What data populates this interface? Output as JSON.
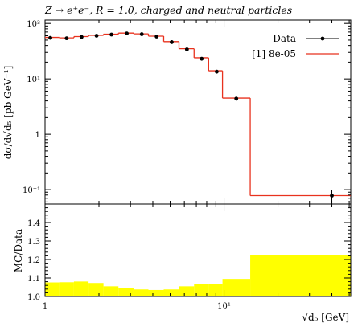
{
  "chart_data": {
    "type": "line",
    "title": "Z → e⁺e⁻, R = 1.0, charged and neutral particles",
    "xlabel": "√d₅ [GeV]",
    "xscale": "log",
    "xlim": [
      1,
      51
    ],
    "main": {
      "ylabel": "dσ/d√d₅ [pb GeV⁻¹]",
      "yscale": "log",
      "ylim": [
        0.055,
        115
      ],
      "yticks": [
        {
          "value": 100,
          "label": "10²"
        },
        {
          "value": 10,
          "label": "10¹"
        },
        {
          "value": 1,
          "label": "1"
        },
        {
          "value": 0.1,
          "label": "10⁻¹"
        }
      ],
      "legend_position": "top-right",
      "series": [
        {
          "name": "Data",
          "style": "points",
          "color": "#000000",
          "x": [
            1.07,
            1.32,
            1.6,
            1.94,
            2.35,
            2.86,
            3.47,
            4.2,
            5.1,
            6.2,
            7.5,
            9.1,
            11.7,
            40.0
          ],
          "y": [
            55,
            54,
            57,
            60,
            63,
            66,
            64,
            58,
            46,
            34,
            23,
            13.5,
            4.4,
            0.078
          ],
          "yerr": [
            2.5,
            2.5,
            2.5,
            2.5,
            2.5,
            2.5,
            2.5,
            2.5,
            2.0,
            1.5,
            1.2,
            0.8,
            0.35,
            0.02
          ]
        },
        {
          "name": "[1] 8e-05",
          "style": "histogram",
          "color": "#e8321e",
          "edges": [
            1.0,
            1.2,
            1.45,
            1.75,
            2.12,
            2.57,
            3.12,
            3.78,
            4.6,
            5.6,
            6.8,
            8.2,
            9.8,
            14.0,
            51.0
          ],
          "values": [
            56,
            55,
            58,
            61,
            64,
            67,
            65,
            59,
            47,
            35,
            24,
            14,
            4.5,
            0.078
          ]
        }
      ]
    },
    "ratio": {
      "ylabel": "MC/Data",
      "ylim": [
        1.0,
        1.5
      ],
      "yticks": [
        {
          "value": 1.0,
          "label": "1.0"
        },
        {
          "value": 1.1,
          "label": "1.1"
        },
        {
          "value": 1.2,
          "label": "1.2"
        },
        {
          "value": 1.3,
          "label": "1.3"
        },
        {
          "value": 1.4,
          "label": "1.4"
        }
      ],
      "band_color": "#ffff00",
      "band_edges": [
        1.0,
        1.2,
        1.45,
        1.75,
        2.12,
        2.57,
        3.12,
        3.78,
        4.6,
        5.6,
        6.8,
        8.2,
        9.8,
        14.0,
        51.0
      ],
      "band_upper": [
        1.076,
        1.077,
        1.081,
        1.073,
        1.055,
        1.044,
        1.038,
        1.035,
        1.038,
        1.055,
        1.068,
        1.068,
        1.095,
        1.222
      ]
    },
    "xticks": [
      {
        "value": 1,
        "label": "1"
      },
      {
        "value": 10,
        "label": "10¹"
      }
    ]
  }
}
